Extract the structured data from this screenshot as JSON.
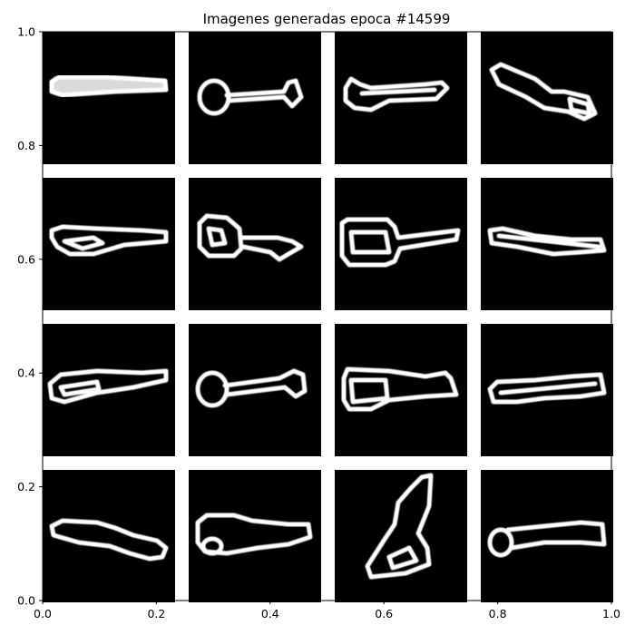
{
  "chart_data": {
    "type": "image-grid",
    "title": "Imagenes generadas epoca #14599",
    "xlabel": "",
    "ylabel": "",
    "xlim": [
      0.0,
      1.0
    ],
    "ylim": [
      0.0,
      1.0
    ],
    "x_ticks": [
      "0.0",
      "0.2",
      "0.4",
      "0.6",
      "0.8",
      "1.0"
    ],
    "y_ticks": [
      "0.0",
      "0.2",
      "0.4",
      "0.6",
      "0.8",
      "1.0"
    ],
    "grid": false,
    "rows": 4,
    "cols": 4,
    "tile_background": "#000000",
    "stroke_color": "#ffffff",
    "tiles": [
      {
        "shape": "bar-horizontal"
      },
      {
        "shape": "ring-handle"
      },
      {
        "shape": "blob-handle"
      },
      {
        "shape": "bar-diagonal"
      },
      {
        "shape": "loop-bar"
      },
      {
        "shape": "box-handle"
      },
      {
        "shape": "box-handle-wide"
      },
      {
        "shape": "thin-bar"
      },
      {
        "shape": "wedge-bar"
      },
      {
        "shape": "ring-handle-small"
      },
      {
        "shape": "block-bar"
      },
      {
        "shape": "loop-bar-small"
      },
      {
        "shape": "bar-diagonal-down"
      },
      {
        "shape": "loop-bar-wide"
      },
      {
        "shape": "vertical-shape"
      },
      {
        "shape": "ring-handle-right"
      }
    ]
  }
}
